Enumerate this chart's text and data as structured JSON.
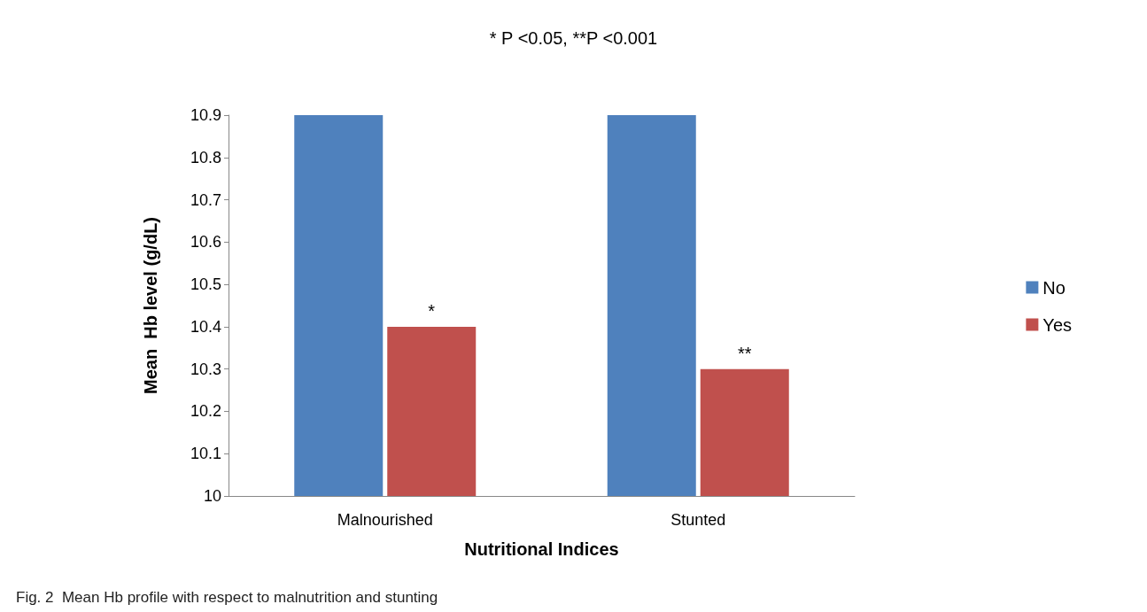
{
  "chart_data": {
    "type": "bar",
    "title": "* P <0.05, **P <0.001",
    "xlabel": "Nutritional Indices",
    "ylabel": "Mean  Hb level (g/dL)",
    "categories": [
      "Malnourished",
      "Stunted"
    ],
    "series": [
      {
        "name": "No",
        "color": "#4f81bd",
        "values": [
          10.9,
          10.9
        ]
      },
      {
        "name": "Yes",
        "color": "#c0504d",
        "values": [
          10.4,
          10.3
        ]
      }
    ],
    "ylim": [
      10,
      10.9
    ],
    "yticks": [
      10,
      10.1,
      10.2,
      10.3,
      10.4,
      10.5,
      10.6,
      10.7,
      10.8,
      10.9
    ],
    "grid": false,
    "legend": "right",
    "annotations": [
      {
        "text": "*",
        "x": "Malnourished",
        "y": 10.4
      },
      {
        "text": "**",
        "x": "Stunted",
        "y": 10.3
      },
      "Fig. 2  Mean Hb profile with respect to malnutrition and stunting"
    ]
  }
}
